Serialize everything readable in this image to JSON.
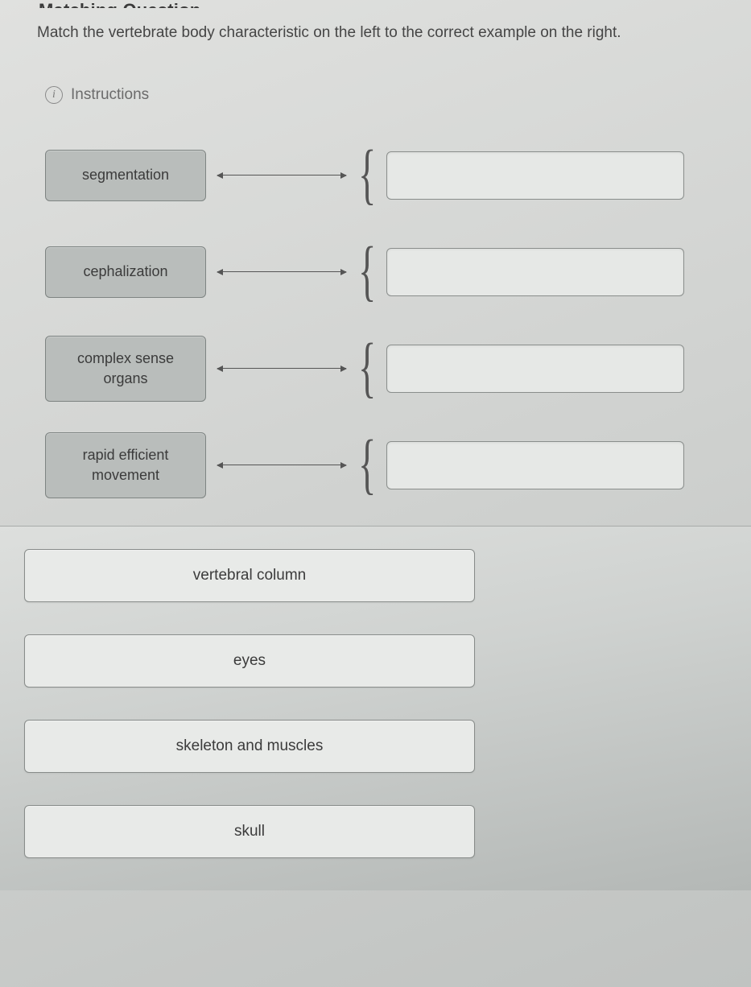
{
  "header_partial": "Matching Question",
  "prompt": "Match the vertebrate body characteristic on the left to the correct example on the right.",
  "instructions_label": "Instructions",
  "left_items": [
    {
      "label": "segmentation",
      "tall": false
    },
    {
      "label": "cephalization",
      "tall": false
    },
    {
      "label": "complex sense organs",
      "tall": true
    },
    {
      "label": "rapid efficient movement",
      "tall": true
    }
  ],
  "answer_options": [
    "vertebral column",
    "eyes",
    "skeleton and muscles",
    "skull"
  ],
  "colors": {
    "card_bg": "#b9bdbb",
    "card_border": "#7e8482",
    "drop_bg": "#e6e8e6",
    "text": "#3b3b3b",
    "connector": "#555555"
  }
}
